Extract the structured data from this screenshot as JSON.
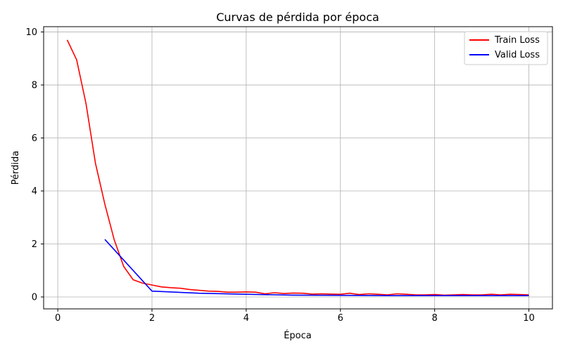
{
  "chart_data": {
    "type": "line",
    "title": "Curvas de pérdida por época",
    "xlabel": "Época",
    "ylabel": "Pérdida",
    "xlim": [
      -0.3,
      10.5
    ],
    "ylim": [
      -0.45,
      10.2
    ],
    "x_ticks": [
      0,
      2,
      4,
      6,
      8,
      10
    ],
    "y_ticks": [
      0,
      2,
      4,
      6,
      8,
      10
    ],
    "grid": true,
    "legend_position": "top-right",
    "series": [
      {
        "name": "Train Loss",
        "color": "#ff0000",
        "x": [
          0.2,
          0.4,
          0.6,
          0.8,
          1.0,
          1.2,
          1.4,
          1.6,
          1.8,
          2.0,
          2.2,
          2.4,
          2.6,
          2.8,
          3.0,
          3.2,
          3.4,
          3.6,
          3.8,
          4.0,
          4.2,
          4.4,
          4.6,
          4.8,
          5.0,
          5.2,
          5.4,
          5.6,
          5.8,
          6.0,
          6.2,
          6.4,
          6.6,
          6.8,
          7.0,
          7.2,
          7.4,
          7.6,
          7.8,
          8.0,
          8.2,
          8.4,
          8.6,
          8.8,
          9.0,
          9.2,
          9.4,
          9.6,
          9.8,
          10.0
        ],
        "y": [
          9.7,
          8.95,
          7.3,
          5.05,
          3.5,
          2.15,
          1.15,
          0.65,
          0.52,
          0.45,
          0.38,
          0.35,
          0.33,
          0.28,
          0.25,
          0.22,
          0.21,
          0.18,
          0.18,
          0.19,
          0.18,
          0.12,
          0.16,
          0.13,
          0.15,
          0.14,
          0.11,
          0.12,
          0.11,
          0.1,
          0.14,
          0.09,
          0.12,
          0.1,
          0.08,
          0.12,
          0.1,
          0.08,
          0.08,
          0.09,
          0.07,
          0.08,
          0.09,
          0.08,
          0.08,
          0.1,
          0.08,
          0.1,
          0.09,
          0.08
        ]
      },
      {
        "name": "Valid Loss",
        "color": "#0000ff",
        "x": [
          1,
          2,
          3,
          4,
          5,
          6,
          7,
          8,
          9,
          10
        ],
        "y": [
          2.17,
          0.22,
          0.14,
          0.1,
          0.07,
          0.06,
          0.05,
          0.05,
          0.05,
          0.05
        ]
      }
    ]
  }
}
